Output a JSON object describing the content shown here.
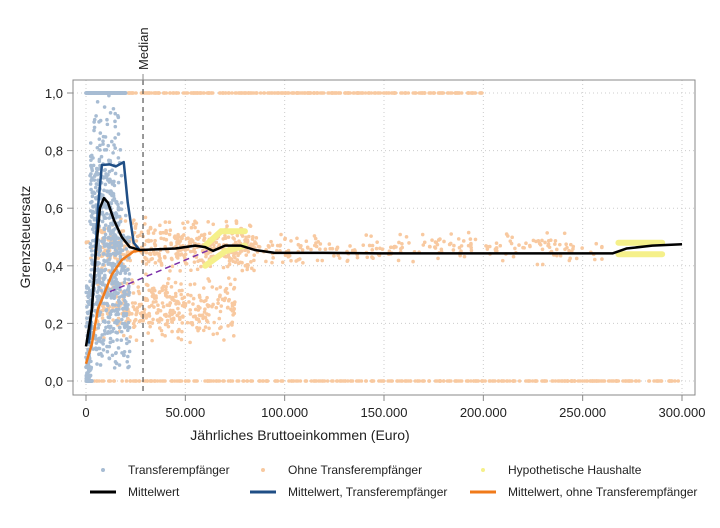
{
  "chart_data": {
    "type": "scatter",
    "title": "",
    "xlabel": "Jährliches Bruttoeinkommen (Euro)",
    "ylabel": "Grenzsteuersatz",
    "xlim": [
      -3000,
      305000
    ],
    "ylim": [
      -0.04,
      1.04
    ],
    "x_ticks": [
      0,
      50000,
      100000,
      150000,
      200000,
      250000,
      300000
    ],
    "x_tick_labels": [
      "0",
      "50.000",
      "100.000",
      "150.000",
      "200.000",
      "250.000",
      "300.000"
    ],
    "y_ticks": [
      0,
      0.2,
      0.4,
      0.6,
      0.8,
      1.0
    ],
    "y_tick_labels": [
      "0,0",
      "0,2",
      "0,4",
      "0,6",
      "0,8",
      "1,0"
    ],
    "grid": true,
    "median": {
      "label": "Median",
      "x": 28700
    },
    "legend_placement": "bottom",
    "series": [
      {
        "name": "Transferempfänger",
        "kind": "points",
        "color": "#a7bcd3",
        "clusters": [
          [
            0,
            0.0,
            3000,
            0.4
          ],
          [
            10000,
            0.6,
            8000,
            0.4
          ],
          [
            10000,
            1.0,
            10000,
            0.0
          ],
          [
            12000,
            0.3,
            10000,
            0.3
          ]
        ]
      },
      {
        "name": "Ohne Transferempfänger",
        "kind": "points",
        "color": "#f8c9a0",
        "clusters": [
          [
            45000,
            0.47,
            40000,
            0.1
          ],
          [
            150000,
            0.0,
            150000,
            0.0
          ],
          [
            100000,
            1.0,
            100000,
            0.0
          ],
          [
            130000,
            0.46,
            130000,
            0.06
          ],
          [
            40000,
            0.25,
            35000,
            0.12
          ]
        ]
      },
      {
        "name": "Hypothetische Haushalte",
        "kind": "band",
        "color": "#f5f08a",
        "segments": [
          [
            [
              60000,
              0.4
            ],
            [
              70000,
              0.45
            ],
            [
              80000,
              0.47
            ]
          ],
          [
            [
              60000,
              0.47
            ],
            [
              68000,
              0.52
            ],
            [
              80000,
              0.52
            ]
          ],
          [
            [
              268000,
              0.44
            ],
            [
              290000,
              0.44
            ]
          ],
          [
            [
              268000,
              0.48
            ],
            [
              290000,
              0.48
            ]
          ]
        ]
      },
      {
        "name": "Mittelwert",
        "kind": "line",
        "color": "#000000",
        "x": [
          0,
          3000,
          5000,
          7000,
          9000,
          11000,
          14000,
          18000,
          22000,
          27000,
          35000,
          45000,
          55000,
          60000,
          64000,
          70000,
          78000,
          85000,
          95000,
          120000,
          150000,
          200000,
          265000,
          272000,
          285000,
          300000
        ],
        "y": [
          0.12,
          0.25,
          0.45,
          0.6,
          0.635,
          0.62,
          0.56,
          0.5,
          0.465,
          0.455,
          0.457,
          0.46,
          0.47,
          0.465,
          0.452,
          0.47,
          0.47,
          0.455,
          0.445,
          0.445,
          0.443,
          0.443,
          0.443,
          0.46,
          0.47,
          0.475
        ]
      },
      {
        "name": "Mittelwert, Transferempfänger",
        "kind": "line",
        "color": "#1f4e85",
        "x": [
          1500,
          4000,
          6000,
          8000,
          12000,
          15000,
          19000,
          21000,
          24000,
          27000
        ],
        "y": [
          0.13,
          0.35,
          0.6,
          0.75,
          0.752,
          0.745,
          0.76,
          0.62,
          0.48,
          0.455
        ]
      },
      {
        "name": "Mittelwert, ohne Transferempfänger",
        "kind": "line",
        "color": "#f07a1a",
        "x": [
          0,
          3000,
          6000,
          9000,
          13000,
          18000,
          24000,
          30000
        ],
        "y": [
          0.06,
          0.13,
          0.25,
          0.3,
          0.37,
          0.42,
          0.45,
          0.455
        ]
      },
      {
        "name": "",
        "kind": "dashed",
        "color": "#7b2fa8",
        "x": [
          12000,
          62000
        ],
        "y": [
          0.31,
          0.455
        ]
      }
    ],
    "legend": [
      {
        "label": "Transferempfänger",
        "color": "#a7bcd3",
        "marker": "point"
      },
      {
        "label": "Ohne Transferempfänger",
        "color": "#f8c9a0",
        "marker": "point"
      },
      {
        "label": "Hypothetische Haushalte",
        "color": "#f5f08a",
        "marker": "point"
      },
      {
        "label": "Mittelwert",
        "color": "#000000",
        "marker": "line"
      },
      {
        "label": "Mittelwert, Transferempfänger",
        "color": "#1f4e85",
        "marker": "line"
      },
      {
        "label": "Mittelwert, ohne Transferempfänger",
        "color": "#f07a1a",
        "marker": "line"
      }
    ]
  }
}
